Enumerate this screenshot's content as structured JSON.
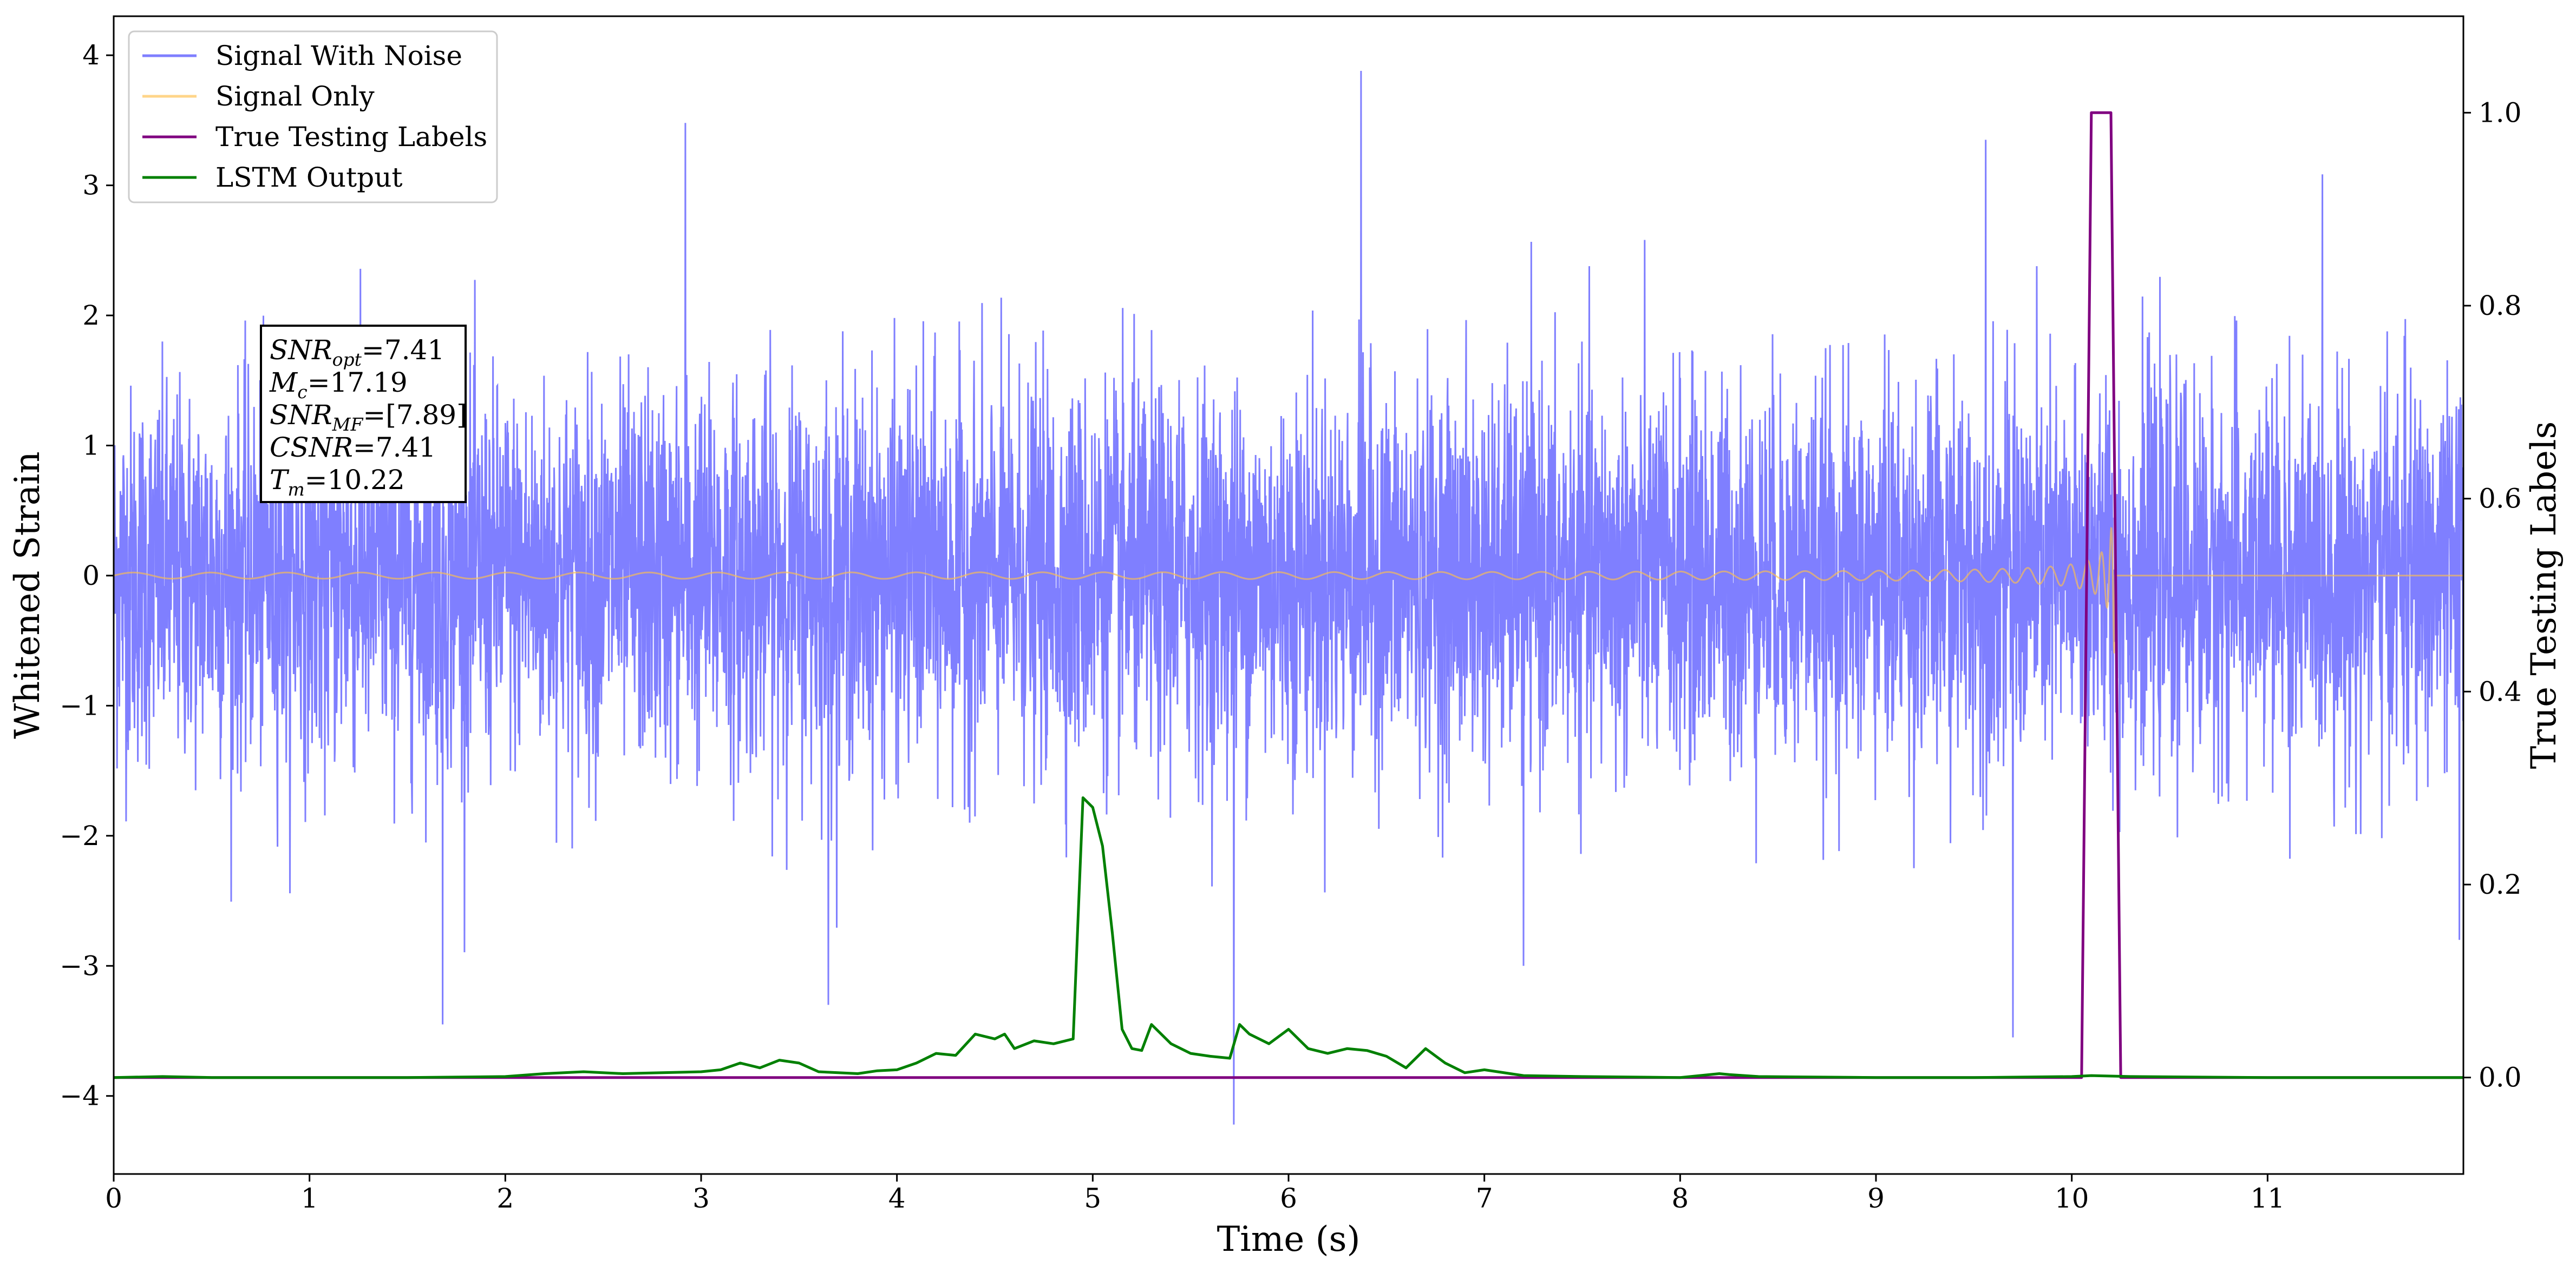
{
  "chart_data": {
    "type": "line",
    "xlabel": "Time (s)",
    "ylabel": "Whitened Strain",
    "y2label": "True Testing Labels",
    "xlim": [
      0,
      12
    ],
    "ylim": [
      -4.6,
      4.3
    ],
    "y2lim": [
      -0.1,
      1.1
    ],
    "xticks": [
      0,
      1,
      2,
      3,
      4,
      5,
      6,
      7,
      8,
      9,
      10,
      11
    ],
    "yticks": [
      -4,
      -3,
      -2,
      -1,
      0,
      1,
      2,
      3,
      4
    ],
    "y2ticks": [
      0.0,
      0.2,
      0.4,
      0.6,
      0.8,
      1.0
    ],
    "legend_position": "top-left",
    "series": [
      {
        "name": "Signal With Noise",
        "axis": "left",
        "color": "#7f7fff",
        "kind": "noise",
        "noise_std": 0.72,
        "extremes": [
          {
            "x": 1.68,
            "y": -3.45
          },
          {
            "x": 2.92,
            "y": 3.48
          },
          {
            "x": 3.65,
            "y": -3.3
          },
          {
            "x": 5.72,
            "y": -4.22
          },
          {
            "x": 6.37,
            "y": 3.88
          },
          {
            "x": 7.2,
            "y": -3.0
          },
          {
            "x": 9.7,
            "y": -3.55
          },
          {
            "x": 9.56,
            "y": 3.35
          },
          {
            "x": 11.98,
            "y": -2.8
          }
        ]
      },
      {
        "name": "Signal Only",
        "axis": "left",
        "color": "#ffc04c",
        "kind": "chirp",
        "merger_time": 10.22,
        "t_start": 0,
        "base_amplitude": 0.02,
        "peak_amplitude": 0.75
      },
      {
        "name": "True Testing Labels",
        "axis": "right",
        "color": "#800080",
        "x": [
          0,
          10.05,
          10.1,
          10.2,
          10.25,
          10.27,
          12
        ],
        "y": [
          0,
          0,
          1,
          1,
          0,
          0,
          0
        ]
      },
      {
        "name": "LSTM Output",
        "axis": "right",
        "color": "#008000",
        "x": [
          0,
          0.25,
          0.5,
          1.0,
          1.5,
          2.0,
          2.2,
          2.4,
          2.6,
          2.8,
          3.0,
          3.1,
          3.2,
          3.3,
          3.4,
          3.5,
          3.6,
          3.7,
          3.8,
          3.9,
          4.0,
          4.1,
          4.2,
          4.3,
          4.4,
          4.5,
          4.55,
          4.6,
          4.7,
          4.8,
          4.9,
          4.95,
          5.0,
          5.05,
          5.1,
          5.15,
          5.2,
          5.25,
          5.3,
          5.4,
          5.5,
          5.6,
          5.7,
          5.75,
          5.8,
          5.9,
          6.0,
          6.1,
          6.2,
          6.3,
          6.4,
          6.5,
          6.6,
          6.7,
          6.8,
          6.9,
          7.0,
          7.2,
          7.5,
          8.0,
          8.2,
          8.25,
          8.4,
          9.0,
          9.5,
          10.0,
          10.1,
          10.3,
          11.0,
          12.0
        ],
        "y": [
          0.0,
          0.001,
          0.0,
          0.0,
          0.0,
          0.001,
          0.004,
          0.006,
          0.004,
          0.005,
          0.006,
          0.008,
          0.015,
          0.01,
          0.018,
          0.015,
          0.006,
          0.005,
          0.004,
          0.007,
          0.008,
          0.015,
          0.025,
          0.023,
          0.045,
          0.04,
          0.045,
          0.03,
          0.038,
          0.035,
          0.04,
          0.29,
          0.28,
          0.24,
          0.15,
          0.05,
          0.03,
          0.028,
          0.055,
          0.035,
          0.025,
          0.022,
          0.02,
          0.055,
          0.045,
          0.035,
          0.05,
          0.03,
          0.025,
          0.03,
          0.028,
          0.022,
          0.01,
          0.03,
          0.015,
          0.005,
          0.008,
          0.002,
          0.001,
          0.0,
          0.004,
          0.003,
          0.001,
          0.0,
          0.0,
          0.001,
          0.002,
          0.001,
          0.0,
          0.0
        ]
      }
    ],
    "annotation": {
      "lines": [
        {
          "sym": "SNR",
          "sub": "opt",
          "rest": "=7.41"
        },
        {
          "sym": "M",
          "sub": "c",
          "rest": "=17.19"
        },
        {
          "sym": "SNR",
          "sub": "MF",
          "rest": "=[7.89]"
        },
        {
          "sym": "CSNR",
          "sub": "",
          "rest": "=7.41"
        },
        {
          "sym": "T",
          "sub": "m",
          "rest": "=10.22"
        }
      ]
    }
  }
}
